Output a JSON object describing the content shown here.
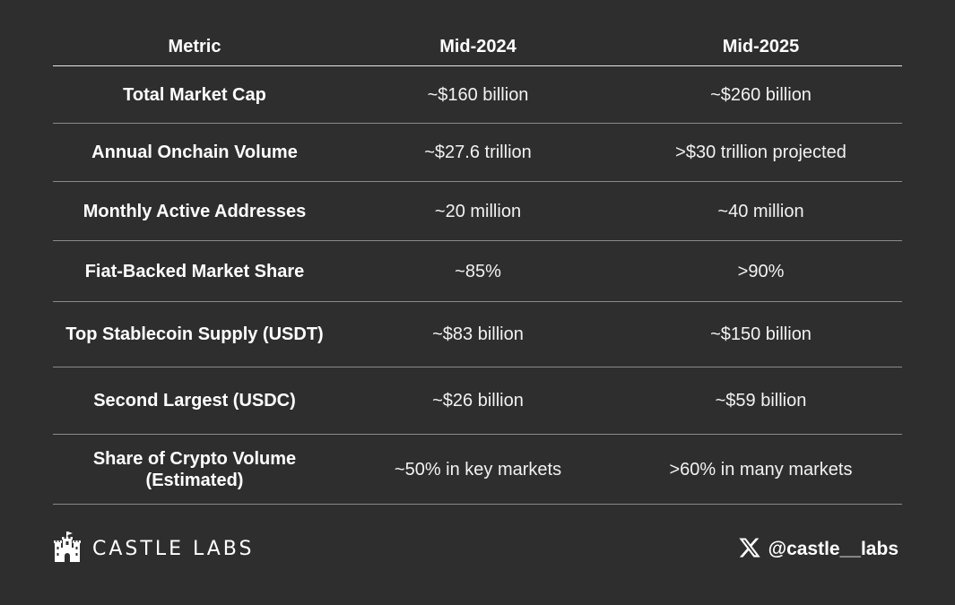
{
  "chart_data": {
    "type": "table",
    "columns": [
      "Metric",
      "Mid-2024",
      "Mid-2025"
    ],
    "rows": [
      {
        "metric": "Total Market Cap",
        "mid_2024": "~$160 billion",
        "mid_2025": "~$260 billion"
      },
      {
        "metric": "Annual Onchain Volume",
        "mid_2024": "~$27.6 trillion",
        "mid_2025": ">$30 trillion projected"
      },
      {
        "metric": "Monthly Active Addresses",
        "mid_2024": "~20 million",
        "mid_2025": "~40 million"
      },
      {
        "metric": "Fiat-Backed Market Share",
        "mid_2024": "~85%",
        "mid_2025": ">90%"
      },
      {
        "metric": "Top Stablecoin Supply (USDT)",
        "mid_2024": "~$83 billion",
        "mid_2025": "~$150 billion"
      },
      {
        "metric": "Second Largest (USDC)",
        "mid_2024": "~$26 billion",
        "mid_2025": "~$59 billion"
      },
      {
        "metric": "Share of Crypto Volume (Estimated)",
        "mid_2024": "~50% in key markets",
        "mid_2025": ">60% in many markets"
      }
    ]
  },
  "footer": {
    "brand": "CASTLE LABS",
    "brand_icon": "castle-icon",
    "social_icon": "x-logo-icon",
    "handle": "@castle__labs"
  },
  "colors": {
    "background": "#2e2e2e",
    "text": "#ffffff",
    "row_divider": "#8a8a8a"
  }
}
